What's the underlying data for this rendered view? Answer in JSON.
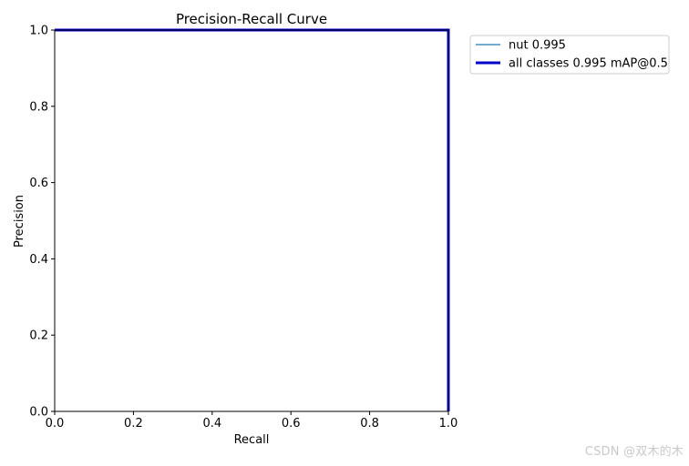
{
  "chart_data": {
    "type": "line",
    "title": "Precision-Recall Curve",
    "xlabel": "Recall",
    "ylabel": "Precision",
    "xlim": [
      0.0,
      1.0
    ],
    "ylim": [
      0.0,
      1.0
    ],
    "x_ticks": [
      "0.0",
      "0.2",
      "0.4",
      "0.6",
      "0.8",
      "1.0"
    ],
    "y_ticks": [
      "0.0",
      "0.2",
      "0.4",
      "0.6",
      "0.8",
      "1.0"
    ],
    "grid": false,
    "legend_position": "outside-upper-right",
    "series": [
      {
        "name": "nut 0.995",
        "color": "#1f77b4",
        "points": [
          [
            0.0,
            1.0
          ],
          [
            1.0,
            1.0
          ],
          [
            1.0,
            0.0
          ]
        ]
      },
      {
        "name": "all classes 0.995 mAP@0.5",
        "color": "#0000cc",
        "points": [
          [
            0.0,
            1.0
          ],
          [
            1.0,
            1.0
          ],
          [
            1.0,
            0.0
          ]
        ]
      }
    ]
  },
  "watermark": "CSDN @双木的木"
}
